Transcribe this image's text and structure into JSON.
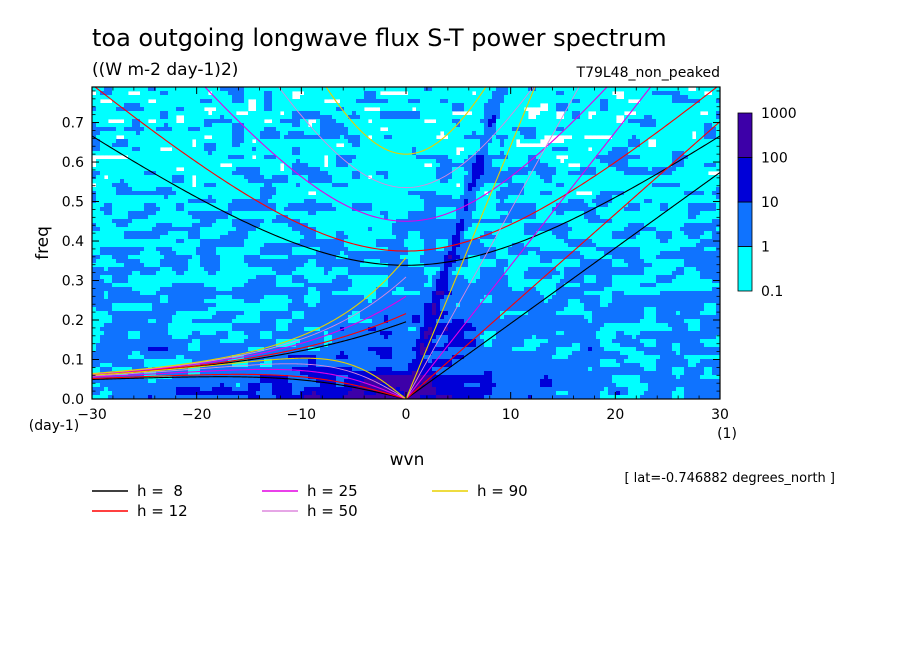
{
  "chart_data": {
    "type": "heatmap",
    "title": "toa outgoing longwave flux S-T power spectrum",
    "subtitle": "((W m-2 day-1)2)",
    "case_label": "T79L48_non_peaked",
    "xlabel": "wvn",
    "ylabel": "freq",
    "x_unit": "(1)",
    "y_unit": "(day-1)",
    "xlim": [
      -30,
      30
    ],
    "ylim": [
      0,
      0.79
    ],
    "x_ticks": [
      -30,
      -20,
      -10,
      0,
      10,
      20,
      30
    ],
    "x_tick_labels": [
      "−30",
      "−20",
      "−10",
      "0",
      "10",
      "20",
      "30"
    ],
    "y_ticks": [
      0.0,
      0.1,
      0.2,
      0.3,
      0.4,
      0.5,
      0.6,
      0.7
    ],
    "y_tick_labels": [
      "0.0",
      "0.1",
      "0.2",
      "0.3",
      "0.4",
      "0.5",
      "0.6",
      "0.7"
    ],
    "colorbar": {
      "levels": [
        "0.1",
        "1",
        "10",
        "100",
        "1000"
      ],
      "colors": [
        "#00ffff",
        "#0f73ff",
        "#0000d8",
        "#3d00a8"
      ]
    },
    "annotation": "[ lat=-0.746882 degrees_north ]",
    "dispersion_curves": [
      {
        "label": "h =  8",
        "h": 8,
        "color": "#000000"
      },
      {
        "label": "h = 12",
        "h": 12,
        "color": "#ff0000"
      },
      {
        "label": "h = 25",
        "h": 25,
        "color": "#e400e4"
      },
      {
        "label": "h = 50",
        "h": 50,
        "color": "#dd88dd"
      },
      {
        "label": "h = 90",
        "h": 90,
        "color": "#e8d000"
      }
    ]
  }
}
